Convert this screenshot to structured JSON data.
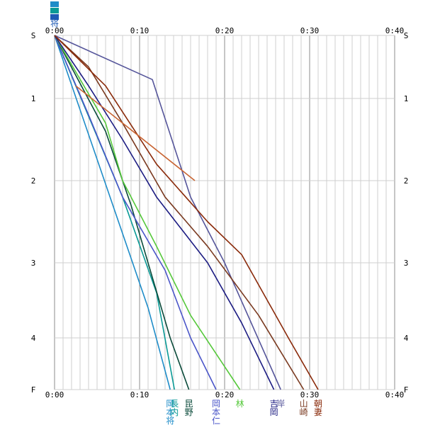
{
  "chart_data": {
    "type": "line",
    "x_ticks": [
      "0:00",
      "0:10",
      "0:20",
      "0:30",
      "0:40"
    ],
    "x_unit": "minutes",
    "xlim": [
      0,
      40
    ],
    "y_ticks": [
      "S",
      "1",
      "2",
      "3",
      "4",
      "F"
    ],
    "ylim": [
      0,
      4.6
    ],
    "grid": true,
    "series": [
      {
        "name": "岡本将",
        "color": "#1e8cc8",
        "x": [
          0,
          11,
          13.6
        ],
        "y": [
          0,
          3.6,
          4.6
        ],
        "label_chars": [
          "岡",
          "本",
          "将"
        ]
      },
      {
        "name": "長内",
        "color": "#0a9a96",
        "x": [
          0,
          8,
          12,
          14.1
        ],
        "y": [
          0,
          2.2,
          3.4,
          4.6
        ],
        "label_chars": [
          "長",
          "内"
        ]
      },
      {
        "name": "昆野",
        "color": "#0a4a3a",
        "x": [
          0,
          6,
          9,
          13.6,
          15.8
        ],
        "y": [
          0,
          1.4,
          2.3,
          4.0,
          4.6
        ],
        "label_chars": [
          "昆",
          "野"
        ]
      },
      {
        "name": "岡本仁",
        "color": "#4a55c8",
        "x": [
          0,
          4,
          8,
          13,
          16,
          19
        ],
        "y": [
          0,
          1.2,
          2.2,
          3.1,
          4.0,
          4.6
        ],
        "label_chars": [
          "岡",
          "本",
          "仁"
        ]
      },
      {
        "name": "林",
        "color": "#55c83a",
        "x": [
          0,
          6,
          8,
          12,
          16,
          21.8
        ],
        "y": [
          0,
          1.3,
          2.0,
          2.8,
          3.7,
          4.6
        ],
        "label_chars": [
          "林"
        ]
      },
      {
        "name": "吉岡",
        "color": "#1c1c82",
        "x": [
          0,
          4,
          8,
          12,
          18,
          22,
          25.8
        ],
        "y": [
          0,
          0.8,
          1.5,
          2.2,
          3.0,
          3.8,
          4.6
        ],
        "label_chars": [
          "吉",
          "岡"
        ]
      },
      {
        "name": "岸",
        "color": "#55559a",
        "x": [
          0,
          11.5,
          16,
          20,
          26.6
        ],
        "y": [
          0,
          0.7,
          2.2,
          3.0,
          4.6
        ],
        "label_chars": [
          "岸"
        ]
      },
      {
        "name": "山崎",
        "color": "#7a3a20",
        "x": [
          0,
          4,
          8,
          13,
          18,
          24,
          29.3
        ],
        "y": [
          0,
          0.5,
          1.3,
          2.2,
          2.8,
          3.7,
          4.6
        ],
        "label_chars": [
          "山",
          "崎"
        ]
      },
      {
        "name": "朝妻",
        "color": "#8a2a0a",
        "x": [
          0,
          6,
          12,
          18,
          22,
          27.5,
          31
        ],
        "y": [
          0,
          0.8,
          1.8,
          2.5,
          2.9,
          4.0,
          4.6
        ],
        "label_chars": [
          "朝",
          "妻"
        ]
      },
      {
        "name": "",
        "color": "#c86432",
        "x": [
          2.5,
          16.5
        ],
        "y": [
          0.8,
          2.0
        ],
        "label_chars": []
      }
    ]
  },
  "legend_icons": [
    "#1e8cc8",
    "#0a9a96",
    "#1e5ab4"
  ],
  "corner_char": "将"
}
